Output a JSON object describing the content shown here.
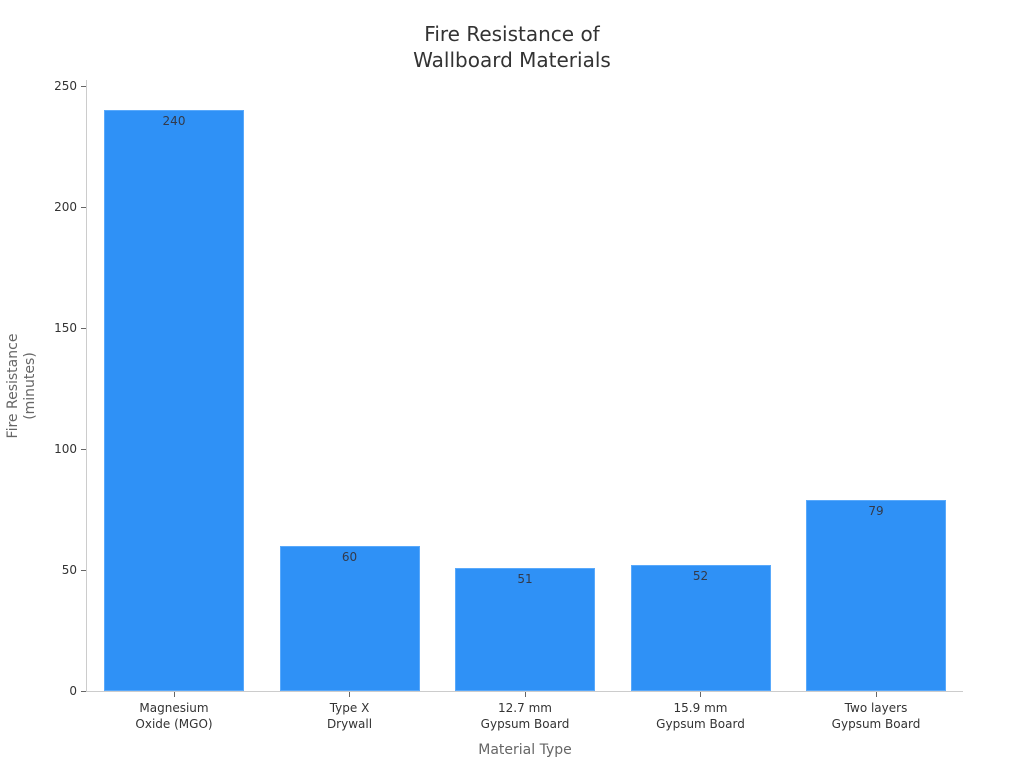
{
  "chart_data": {
    "type": "bar",
    "title": "Fire Resistance of\nWallboard Materials",
    "title_lines": [
      "Fire Resistance of",
      "Wallboard Materials"
    ],
    "xlabel": "Material Type",
    "ylabel": "Fire Resistance\n(minutes)",
    "ylabel_lines": [
      "Fire Resistance",
      "(minutes)"
    ],
    "categories": [
      "Magnesium\nOxide (MGO)",
      "Type X\nDrywall",
      "12.7 mm\nGypsum Board",
      "15.9 mm\nGypsum Board",
      "Two layers\nGypsum Board"
    ],
    "values": [
      240,
      60,
      51,
      52,
      79
    ],
    "data_labels": [
      "240",
      "60",
      "51",
      "52",
      "79"
    ],
    "ylim": [
      0,
      250
    ],
    "yticks": [
      0,
      50,
      100,
      150,
      200,
      250
    ],
    "grid": false,
    "legend": null,
    "bar_color": "#2f91f6"
  }
}
